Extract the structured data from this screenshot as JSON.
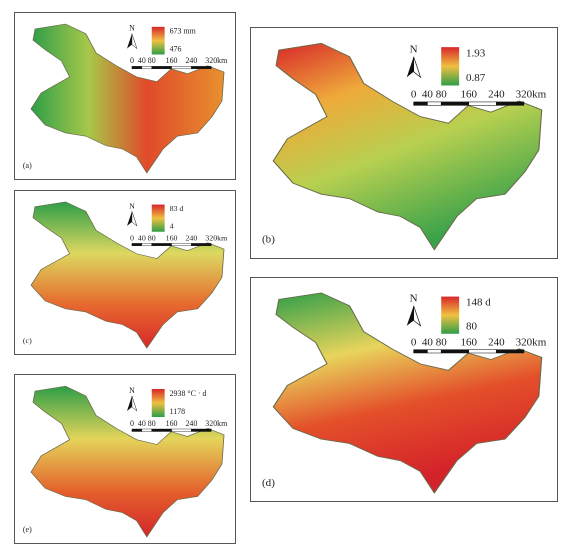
{
  "panels": [
    {
      "label": "(a)",
      "north": "N",
      "legend": {
        "max": "673 mm",
        "min": "476"
      },
      "scale": {
        "ticks": [
          "0",
          "40",
          "80",
          "160",
          "240",
          "320"
        ],
        "unit": "km"
      }
    },
    {
      "label": "(b)",
      "north": "N",
      "legend": {
        "max": "1.93",
        "min": "0.87"
      },
      "scale": {
        "ticks": [
          "0",
          "40",
          "80",
          "160",
          "240",
          "320"
        ],
        "unit": "km"
      }
    },
    {
      "label": "(c)",
      "north": "N",
      "legend": {
        "max": "83 d",
        "min": "4"
      },
      "scale": {
        "ticks": [
          "0",
          "40",
          "80",
          "160",
          "240",
          "320"
        ],
        "unit": "km"
      }
    },
    {
      "label": "(d)",
      "north": "N",
      "legend": {
        "max": "148 d",
        "min": "80"
      },
      "scale": {
        "ticks": [
          "0",
          "40",
          "80",
          "160",
          "240",
          "320"
        ],
        "unit": "km"
      }
    },
    {
      "label": "(e)",
      "north": "N",
      "legend": {
        "max": "2938 °C · d",
        "min": "1178"
      },
      "scale": {
        "ticks": [
          "0",
          "40",
          "80",
          "160",
          "240",
          "320"
        ],
        "unit": "km"
      }
    }
  ]
}
